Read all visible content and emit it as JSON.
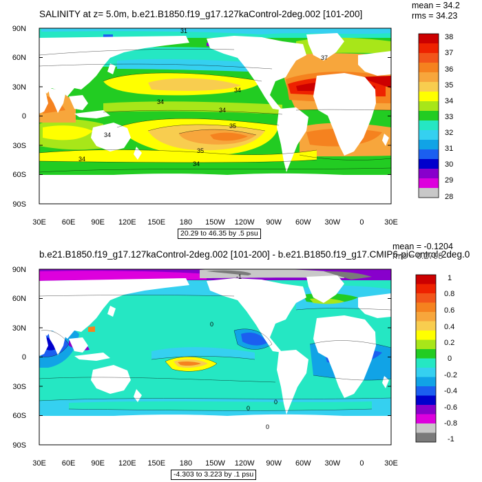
{
  "axes": {
    "lat_labels": [
      "90N",
      "60N",
      "30N",
      "0",
      "30S",
      "60S",
      "90S"
    ],
    "lon_labels": [
      "30E",
      "60E",
      "90E",
      "120E",
      "150E",
      "180",
      "150W",
      "120W",
      "90W",
      "60W",
      "30W",
      "0",
      "30E"
    ]
  },
  "panels": [
    {
      "title": "SALINITY at z=   5.0m, b.e21.B1850.f19_g17.127kaControl-2deg.002 [101-200]",
      "mean": "mean = 34.2",
      "rms": "rms = 34.23",
      "range": "20.29 to 46.35 by .5 psu",
      "colorbar_labels": [
        "38",
        "37",
        "36",
        "35",
        "34",
        "33",
        "32",
        "31",
        "30",
        "29",
        "28"
      ],
      "colorbar_colors": [
        "#cc0000",
        "#ee2200",
        "#f2551a",
        "#f5821f",
        "#f7a63c",
        "#f8cd4f",
        "#ffff00",
        "#a8e619",
        "#22cc22",
        "#25e7c3",
        "#35d0f0",
        "#11a3e6",
        "#1b5ff0",
        "#0000cc",
        "#8800cc",
        "#dd00dd",
        "#c8c8c8",
        "#7a7a7a"
      ],
      "contour_labels": [
        "31",
        "34",
        "34",
        "34",
        "34",
        "35",
        "35",
        "34",
        "34",
        "37"
      ],
      "chart_data": {
        "type": "heatmap",
        "title": "SALINITY at z=   5.0m, b.e21.B1850.f19_g17.127kaControl-2deg.002 [101-200]",
        "units": "psu",
        "min": 20.29,
        "max": 46.35,
        "interval": 0.5,
        "levels": [
          28,
          29,
          30,
          31,
          32,
          33,
          34,
          35,
          36,
          37,
          38
        ],
        "mean": 34.2,
        "rms": 34.23,
        "xlim": [
          "30E",
          "30E"
        ],
        "ylim": [
          "90S",
          "90N"
        ]
      }
    },
    {
      "title": "b.e21.B1850.f19_g17.127kaControl-2deg.002 [101-200] - b.e21.B1850.f19_g17.CMIP6-piControl-2deg.0",
      "mean": "mean = -0.1204",
      "rms": "rms = 0.2798",
      "range": "-4.303 to 3.223 by .1 psu",
      "colorbar_labels": [
        "1",
        "0.8",
        "0.6",
        "0.4",
        "0.2",
        "0",
        "-0.2",
        "-0.4",
        "-0.6",
        "-0.8",
        "-1"
      ],
      "colorbar_colors": [
        "#cc0000",
        "#ee2200",
        "#f2551a",
        "#f5821f",
        "#f7a63c",
        "#f8cd4f",
        "#ffff00",
        "#a8e619",
        "#22cc22",
        "#25e7c3",
        "#35d0f0",
        "#11a3e6",
        "#1b5ff0",
        "#0000cc",
        "#8800cc",
        "#dd00dd",
        "#c8c8c8",
        "#7a7a7a"
      ],
      "contour_labels": [
        "0",
        "0",
        "0",
        "0",
        "-1"
      ],
      "chart_data": {
        "type": "heatmap",
        "title": "b.e21.B1850.f19_g17.127kaControl-2deg.002 [101-200] - b.e21.B1850.f19_g17.CMIP6-piControl-2deg.0",
        "units": "psu",
        "min": -4.303,
        "max": 3.223,
        "interval": 0.1,
        "levels": [
          -1,
          -0.8,
          -0.6,
          -0.4,
          -0.2,
          0,
          0.2,
          0.4,
          0.6,
          0.8,
          1
        ],
        "mean": -0.1204,
        "rms": 0.2798,
        "xlim": [
          "30E",
          "30E"
        ],
        "ylim": [
          "90S",
          "90N"
        ]
      }
    }
  ]
}
